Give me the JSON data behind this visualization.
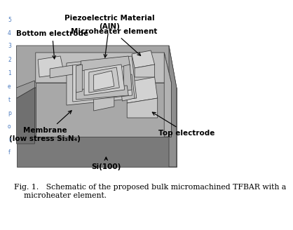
{
  "fig_caption": "Fig. 1.   Schematic of the proposed bulk micromachined TFBAR with a\n    microheater element.",
  "bg_color": "#ffffff",
  "label_fontsize": 7.5,
  "caption_fontsize": 7.8,
  "left_chars": [
    "5",
    "4",
    "3",
    "2",
    "1",
    "e",
    "t",
    "p",
    "o",
    "r",
    "f"
  ],
  "colors": {
    "sub_top": "#a5a5a5",
    "sub_front": "#7a7a7a",
    "sub_right": "#8e8e8e",
    "sub_back_top": "#b8b8b8",
    "tab_top": "#9a9a9a",
    "tab_front": "#707070",
    "mem_top": "#c0c0c0",
    "mem_front": "#a8a8a8",
    "mem_right": "#b2b2b2",
    "pad_light": "#d2d2d2",
    "pad_mid": "#c8c8c8",
    "inner_bg": "#b8b8b8",
    "layer1": "#c5c5c5",
    "layer2": "#d0d0d0",
    "layer3": "#bcbcbc",
    "layer4": "#c8c8c8",
    "center": "#d5d5d5",
    "trace": "#c2c2c2",
    "edge": "#3a3a3a"
  }
}
